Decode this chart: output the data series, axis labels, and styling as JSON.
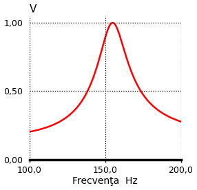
{
  "title": "V",
  "xlabel": "Frecvenţa  Hz",
  "xlim": [
    100.0,
    200.0
  ],
  "ylim": [
    0.0,
    1.05
  ],
  "xticks": [
    100.0,
    150.0,
    200.0
  ],
  "yticks": [
    0.0,
    0.5,
    1.0
  ],
  "ytick_labels": [
    "0,00",
    "0,50",
    "1,00"
  ],
  "xtick_labels": [
    "100,0",
    "150,0",
    "200,0"
  ],
  "curve_color": "#ff0000",
  "line_width": 1.8,
  "f0": 155.0,
  "Q_pole": 8.0,
  "Q_zero": 1.2,
  "background": "#ffffff",
  "grid_color": "#000000"
}
